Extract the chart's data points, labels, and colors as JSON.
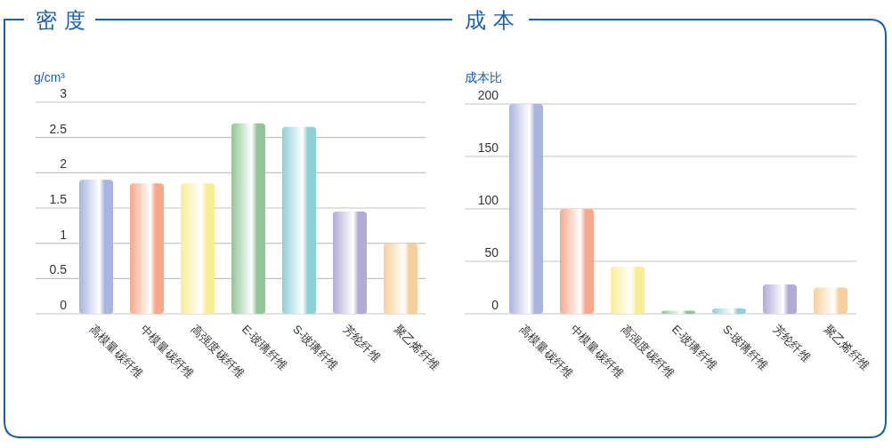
{
  "chart_data": [
    {
      "type": "bar",
      "title": "密 度",
      "ylabel": "g/cm³",
      "categories": [
        "高模量碳纤维",
        "中模量碳纤维",
        "高强度碳纤维",
        "E-玻璃纤维",
        "S-玻璃纤维",
        "芳纶纤维",
        "聚乙烯纤维"
      ],
      "values": [
        1.9,
        1.85,
        1.85,
        2.7,
        2.65,
        1.45,
        1.0
      ],
      "colors": [
        "#aab4de",
        "#f7a88c",
        "#f7ee96",
        "#93c497",
        "#8fd0d8",
        "#b3aad6",
        "#f7cf9c"
      ],
      "ylim": [
        0,
        3
      ],
      "yticks": [
        0,
        0.5,
        1,
        1.5,
        2,
        2.5,
        3
      ],
      "grid": "y"
    },
    {
      "type": "bar",
      "title": "成 本",
      "ylabel": "成本比",
      "categories": [
        "高模量碳纤维",
        "中模量碳纤维",
        "高强度碳纤维",
        "E-玻璃纤维",
        "S-玻璃纤维",
        "芳纶纤维",
        "聚乙烯纤维"
      ],
      "values": [
        200,
        100,
        45,
        3,
        5,
        28,
        25
      ],
      "colors": [
        "#aab4de",
        "#f7a88c",
        "#f7ee96",
        "#93c497",
        "#8fd0d8",
        "#b3aad6",
        "#f7cf9c"
      ],
      "ylim": [
        0,
        200
      ],
      "yticks": [
        0,
        50,
        100,
        150,
        200
      ],
      "grid": "y"
    }
  ]
}
